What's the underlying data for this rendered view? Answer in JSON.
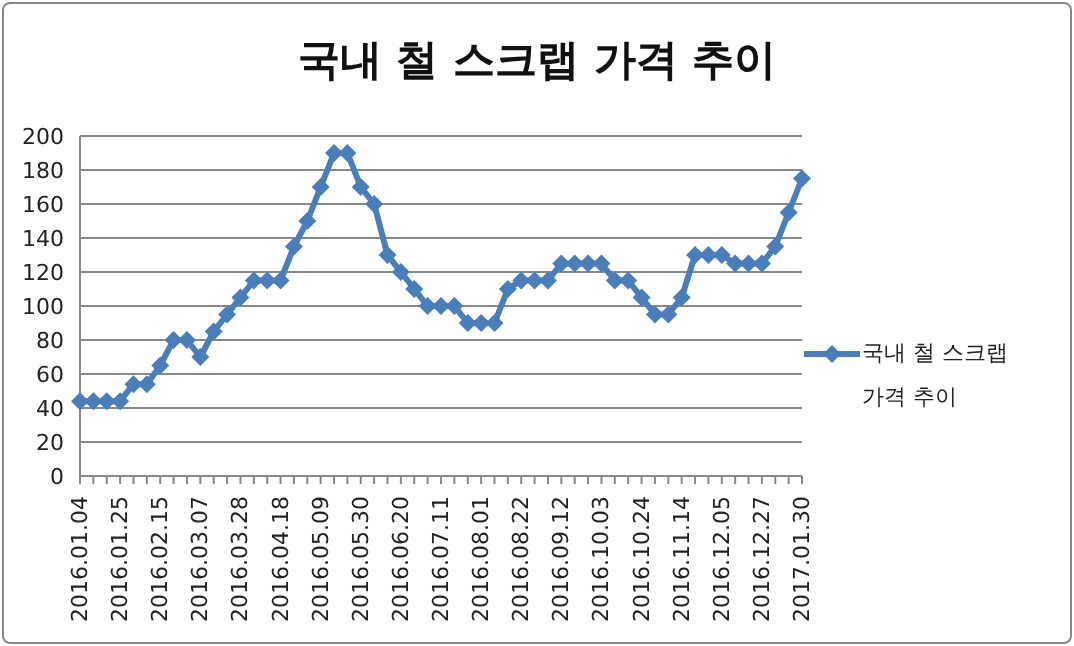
{
  "chart_data": {
    "type": "line",
    "title": "국내 철 스크랩 가격 추이",
    "categories": [
      "2016.01.04",
      null,
      null,
      "2016.01.25",
      null,
      null,
      "2016.02.15",
      null,
      null,
      "2016.03.07",
      null,
      null,
      "2016.03.28",
      null,
      null,
      "2016.04.18",
      null,
      null,
      "2016.05.09",
      null,
      null,
      "2016.05.30",
      null,
      null,
      "2016.06.20",
      null,
      null,
      "2016.07.11",
      null,
      null,
      "2016.08.01",
      null,
      null,
      "2016.08.22",
      null,
      null,
      "2016.09.12",
      null,
      null,
      "2016.10.03",
      null,
      null,
      "2016.10.24",
      null,
      null,
      "2016.11.14",
      null,
      null,
      "2016.12.05",
      null,
      null,
      "2016.12.27",
      null,
      null,
      "2017.01.30"
    ],
    "series": [
      {
        "name": "국내 철 스크랩 가격 추이",
        "color": "#4a7ebb",
        "values": [
          44,
          44,
          44,
          44,
          54,
          54,
          65,
          80,
          80,
          70,
          85,
          95,
          105,
          115,
          115,
          115,
          135,
          150,
          170,
          190,
          190,
          170,
          160,
          130,
          120,
          110,
          100,
          100,
          100,
          90,
          90,
          90,
          110,
          115,
          115,
          115,
          125,
          125,
          125,
          125,
          115,
          115,
          105,
          95,
          95,
          105,
          130,
          130,
          130,
          125,
          125,
          125,
          135,
          155,
          175
        ]
      }
    ],
    "ylim": [
      0,
      200
    ],
    "yticks": [
      0,
      20,
      40,
      60,
      80,
      100,
      120,
      140,
      160,
      180,
      200
    ],
    "grid": "y",
    "legend": "right",
    "marker": "diamond",
    "line_style": "solid"
  }
}
